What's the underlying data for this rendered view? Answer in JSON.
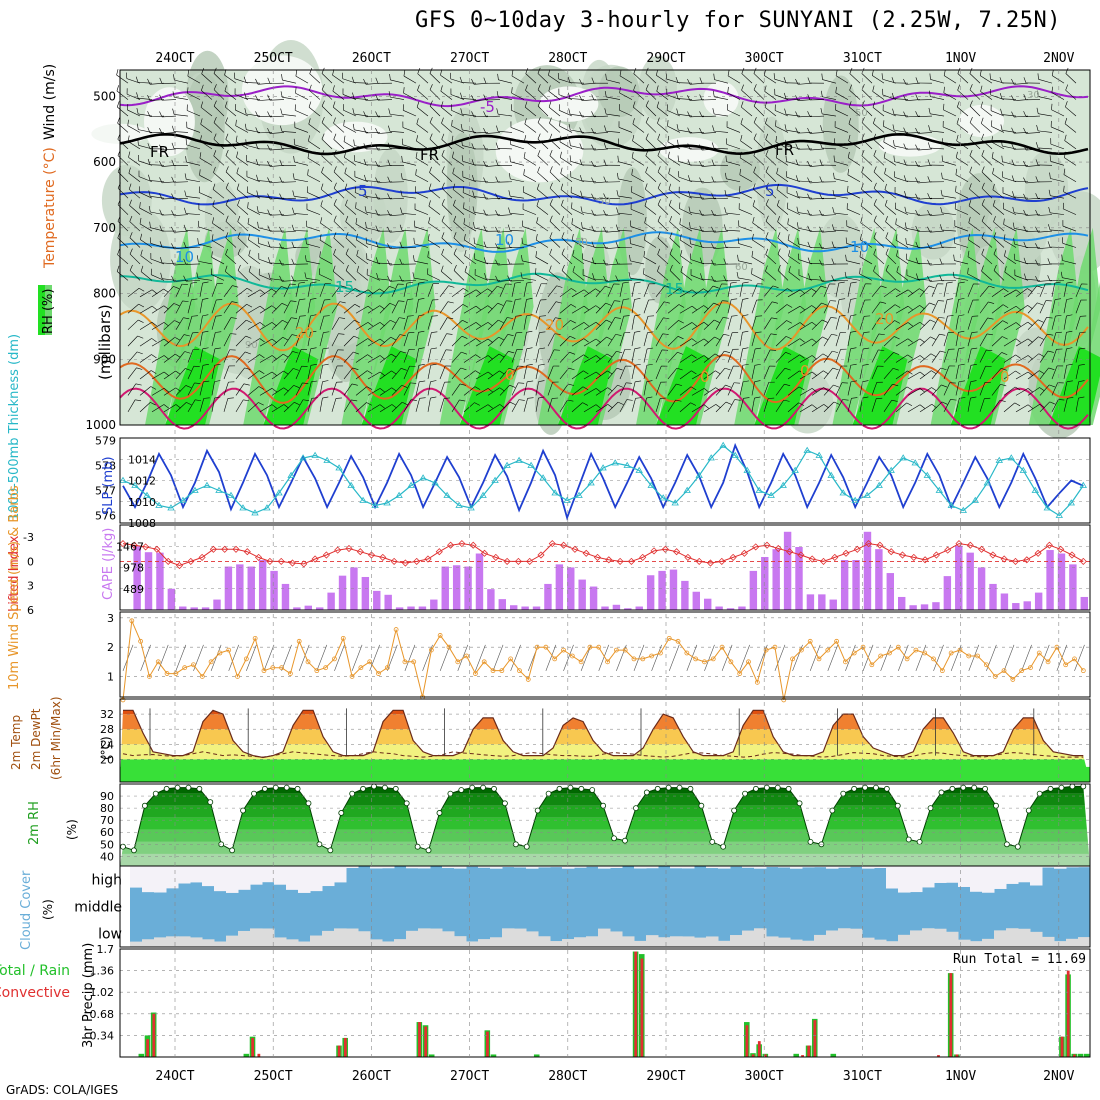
{
  "title": "GFS 0~10day 3-hourly for SUNYANI (2.25W, 7.25N)",
  "footer": "GrADS: COLA/IGES",
  "colors": {
    "rh_light": "#d6e6d6",
    "rh_mid": "#b4c8b4",
    "rh_green": "#6fd96f",
    "rh_bright": "#22e022",
    "temp_m5": "#9a1fc8",
    "temp_fr": "#000000",
    "temp_5": "#1f3fd0",
    "temp_10": "#1d8fe6",
    "temp_15": "#10b898",
    "temp_20": "#e8962a",
    "temp_25": "#e06a20",
    "temp_30": "#d01870",
    "slp": "#1f3fd0",
    "thick": "#28b8c8",
    "cape": "#c878f0",
    "li": "#e03030",
    "wind": "#e8962a",
    "cloud_blue": "#6aaed8",
    "cloud_grey": "#dcdcdc",
    "rain_total": "#22c02a",
    "rain_conv": "#e03030"
  },
  "chart_data": [
    {
      "id": "upper-air",
      "type": "contour",
      "xticks": [
        "24OCT",
        "25OCT",
        "26OCT",
        "27OCT",
        "28OCT",
        "29OCT",
        "30OCT",
        "31OCT",
        "1NOV",
        "2NOV"
      ],
      "ylabel": "(millibars)",
      "left_labels": [
        "RH (%)",
        "Temperature (°C)",
        "Wind (m/s)"
      ],
      "yticks": [
        500,
        600,
        700,
        800,
        900,
        1000
      ],
      "ylim": [
        460,
        1000
      ],
      "isotherms": [
        {
          "value": -5,
          "label": "-5",
          "level": 500
        },
        {
          "value": 0,
          "label": "FR",
          "level": 573
        },
        {
          "value": 5,
          "label": "5",
          "level": 650
        },
        {
          "value": 10,
          "label": "10",
          "level": 722
        },
        {
          "value": 15,
          "label": "15",
          "level": 785
        },
        {
          "value": 20,
          "label": "20",
          "level": 850
        },
        {
          "value": 25,
          "label": "",
          "level": 930
        },
        {
          "value": 30,
          "label": "",
          "level": 975
        }
      ],
      "contour_labels": [
        "-5",
        "FR",
        "FR",
        "FR",
        "5",
        "5",
        "10",
        "10",
        "10",
        "15",
        "15",
        "20",
        "20",
        "20",
        "0",
        "0",
        "0",
        "0"
      ],
      "rh_contour_labels": [
        "30",
        "50",
        "50",
        "50",
        "60",
        "90"
      ]
    },
    {
      "id": "slp-thickness",
      "type": "line",
      "left_labels": [
        "1000-500mb Thickness (dm)",
        "SLP (mb)"
      ],
      "thickness_ticks": [
        579,
        578,
        577,
        576
      ],
      "slp_ticks": [
        1014,
        1012,
        1010
      ],
      "slp_ticks_extra": [
        "1008"
      ],
      "slp_ylim": [
        1008,
        1016
      ],
      "thick_ylim": [
        575.7,
        579.1
      ],
      "series": [
        {
          "name": "SLP",
          "values": [
            1011.5,
            1009.5,
            1011.8,
            1014.5,
            1012.5,
            1009.5,
            1011.8,
            1014.8,
            1012.8,
            1009.3,
            1011.8,
            1014.5,
            1012.5,
            1009.5,
            1011.8,
            1014.2,
            1012.2,
            1009.5,
            1011.8,
            1014.3,
            1012.3,
            1009.5,
            1011.8,
            1014.5,
            1012.5,
            1009.5,
            1011.8,
            1014.2,
            1012.3,
            1009.5,
            1011.8,
            1014.4,
            1012.4,
            1009.2,
            1011.8,
            1014.8,
            1012.5,
            1008.5,
            1011.5,
            1014.5,
            1012.2,
            1009.5,
            1011.8,
            1014.2,
            1012.2,
            1009.5,
            1011.8,
            1014.4,
            1012.4,
            1009.5,
            1011.8,
            1015.3,
            1012.8,
            1009.5,
            1011.8,
            1014.5,
            1012.5,
            1009.5,
            1011.8,
            1014.4,
            1012.3,
            1009.5,
            1011.8,
            1014.2,
            1012.5,
            1009.5,
            1011.8,
            1014.5,
            1012.5,
            1009.5,
            1011.8,
            1014.2,
            1012.2,
            1009.5,
            1011.8,
            1014.5,
            1012.2,
            1009.5,
            1010.8,
            1012.0,
            1011.5
          ]
        },
        {
          "name": "Thickness",
          "values": [
            577.4,
            577.2,
            576.8,
            576.4,
            576.3,
            576.6,
            577.0,
            577.2,
            577.0,
            576.8,
            576.3,
            576.1,
            576.3,
            576.9,
            577.6,
            578.3,
            578.4,
            578.2,
            577.9,
            577.2,
            576.6,
            576.4,
            576.5,
            576.8,
            577.2,
            577.5,
            577.3,
            576.8,
            576.4,
            576.3,
            576.8,
            577.4,
            578.0,
            578.2,
            578.0,
            577.5,
            576.9,
            576.6,
            576.8,
            577.3,
            577.9,
            578.1,
            578.0,
            577.8,
            577.2,
            576.7,
            576.5,
            577.0,
            577.6,
            578.3,
            578.8,
            578.4,
            577.8,
            577.0,
            576.8,
            577.2,
            577.8,
            578.6,
            578.4,
            577.6,
            576.9,
            576.6,
            576.8,
            577.2,
            577.8,
            578.3,
            578.1,
            577.6,
            577.0,
            576.4,
            576.2,
            576.6,
            577.3,
            578.2,
            578.3,
            577.8,
            577.0,
            576.3,
            576.0,
            576.5,
            577.2
          ]
        }
      ]
    },
    {
      "id": "cape-li",
      "type": "bar",
      "left_labels": [
        "Lifted Index",
        "CAPE (J/kg)"
      ],
      "li_ticks": [
        "-3",
        "0",
        "3",
        "6"
      ],
      "cape_ticks": [
        1467,
        978,
        489
      ],
      "cape_ylim": [
        0,
        1956
      ],
      "li_ylim": [
        6,
        -4.5
      ],
      "cape": [
        0,
        1467,
        1330,
        1320,
        489,
        80,
        60,
        60,
        240,
        1000,
        1050,
        1000,
        1150,
        900,
        600,
        60,
        100,
        60,
        400,
        790,
        980,
        760,
        440,
        350,
        60,
        80,
        80,
        240,
        1000,
        1030,
        1000,
        1300,
        480,
        250,
        110,
        80,
        80,
        600,
        1050,
        980,
        700,
        540,
        80,
        120,
        40,
        80,
        800,
        900,
        930,
        670,
        420,
        260,
        80,
        40,
        80,
        900,
        1220,
        1400,
        1800,
        1450,
        360,
        360,
        240,
        1150,
        1150,
        1800,
        1400,
        850,
        300,
        110,
        130,
        180,
        780,
        1480,
        1320,
        980,
        600,
        380,
        160,
        200,
        400,
        1380,
        1300,
        1050,
        300
      ],
      "li": [
        -2.2,
        -2.0,
        -1.8,
        -1.5,
        0,
        0.5,
        0,
        -0.5,
        -1.5,
        -1.5,
        -1.5,
        -1.2,
        -0.5,
        0,
        0,
        0.2,
        0.3,
        -0.3,
        -0.8,
        -1.4,
        -1.6,
        -1.2,
        -0.8,
        -0.5,
        0,
        0.2,
        0,
        -0.3,
        -1.2,
        -2.0,
        -2.2,
        -2.0,
        -1.0,
        -0.5,
        0,
        0,
        0,
        -0.8,
        -2.2,
        -2.0,
        -1.5,
        -1.0,
        -0.5,
        -0.2,
        0,
        0,
        -0.5,
        -1.3,
        -1.5,
        -1.2,
        -0.5,
        0,
        0.2,
        0,
        -0.5,
        -1.0,
        -1.8,
        -2.0,
        -1.6,
        -1.2,
        -0.8,
        -0.3,
        0,
        -0.5,
        -1.0,
        -1.5,
        -2.2,
        -2.0,
        -1.2,
        -0.8,
        -0.5,
        -0.2,
        -0.8,
        -1.4,
        -2.2,
        -2.0,
        -1.5,
        -0.8,
        -0.3,
        0,
        -0.2,
        -1.0,
        -2.0,
        -1.5,
        -0.8,
        0
      ]
    },
    {
      "id": "wind10m",
      "type": "line",
      "left_labels": [
        "10m Wind Speed (m/s) & Barbs"
      ],
      "yticks": [
        1,
        2,
        3
      ],
      "ylim": [
        0.3,
        3.2
      ],
      "values": [
        0.2,
        2.9,
        2.2,
        1.0,
        1.5,
        1.1,
        1.1,
        1.3,
        1.4,
        1.0,
        1.5,
        1.8,
        1.9,
        1.0,
        1.6,
        2.3,
        1.2,
        1.3,
        1.3,
        1.1,
        2.2,
        1.5,
        1.2,
        1.3,
        1.6,
        2.3,
        1.0,
        1.3,
        1.5,
        1.1,
        1.3,
        2.6,
        1.5,
        1.5,
        0.3,
        1.9,
        2.4,
        2.0,
        1.5,
        1.7,
        1.1,
        1.5,
        1.2,
        1.2,
        1.6,
        1.2,
        0.9,
        2.0,
        2.0,
        1.6,
        1.9,
        1.7,
        1.5,
        2.0,
        2.0,
        1.5,
        1.9,
        1.9,
        1.6,
        1.6,
        1.7,
        1.8,
        2.3,
        2.2,
        1.8,
        1.6,
        1.5,
        1.6,
        2.0,
        1.5,
        1.1,
        1.5,
        0.8,
        1.9,
        2.0,
        0.2,
        1.6,
        1.9,
        2.2,
        1.6,
        1.9,
        2.2,
        1.5,
        1.8,
        2.0,
        1.4,
        1.7,
        1.8,
        2.0,
        1.6,
        1.9,
        1.8,
        1.6,
        1.2,
        1.8,
        1.9,
        1.7,
        1.7,
        1.4,
        1.0,
        1.2,
        0.9,
        1.2,
        1.3,
        1.8,
        1.5,
        2.0,
        1.4,
        1.6,
        1.2
      ]
    },
    {
      "id": "temp2m",
      "type": "area",
      "left_labels": [
        "2m Temp",
        "2m DewPt",
        "(6hr Min/Max)",
        "(°C)"
      ],
      "yticks": [
        20,
        24,
        28,
        32
      ],
      "ylim": [
        14,
        36
      ],
      "temp": [
        33,
        33,
        27,
        22,
        21.5,
        21,
        21,
        22,
        30,
        33,
        32,
        25,
        22,
        21,
        20.5,
        21,
        22,
        29,
        33,
        33,
        26,
        22,
        21,
        21,
        21,
        22,
        30,
        33,
        33,
        25,
        22,
        21,
        21,
        21,
        22,
        28,
        31,
        31,
        25,
        22,
        21,
        21,
        21,
        23,
        29,
        31,
        30,
        25,
        22,
        21,
        21,
        21,
        23,
        28,
        32,
        31,
        26,
        22,
        21,
        21,
        21,
        22,
        29,
        33,
        33,
        26,
        22,
        21,
        21,
        21,
        22,
        29,
        32,
        32,
        26,
        23,
        22,
        21,
        21,
        22,
        28,
        31,
        31,
        27,
        22,
        21,
        21,
        21,
        22,
        28,
        31,
        31,
        25,
        22,
        21.5,
        21,
        21
      ],
      "dewpt": [
        21.5,
        21,
        21.2,
        21.3,
        21,
        20.8,
        21,
        21.5,
        22,
        21.5,
        21,
        21.2,
        21,
        20.8,
        20.6,
        21,
        21.5,
        22,
        21.7,
        21.5,
        21.2,
        21,
        20.8,
        21,
        21.5,
        22,
        21.7,
        21.5,
        21,
        20.8,
        20.6,
        20.8,
        21.3,
        22,
        21.7,
        21.5,
        21.2,
        21,
        20.8,
        21,
        21.5,
        21.8,
        21.5,
        21.2,
        21,
        21,
        20.8,
        20.8,
        21.4,
        21.8,
        21.6,
        21.4,
        21,
        20.8,
        20.6,
        20.8,
        21.3,
        21.8,
        21.7,
        21.4,
        21,
        20.8,
        20.6,
        20.8,
        21.4,
        21.8,
        21.6,
        21.4,
        21,
        20.8,
        20.6,
        20.8,
        21.3,
        21.8,
        21.6,
        21.5,
        21,
        20.8,
        20.6,
        20.8,
        21.5,
        21.8,
        21.6,
        21.2,
        21,
        20.8,
        20.6,
        21,
        21.5,
        21.8,
        21.6,
        21.3,
        21,
        20.8,
        20.6,
        20.6,
        20.6
      ]
    },
    {
      "id": "rh2m",
      "type": "area",
      "left_labels": [
        "2m RH",
        "(%)"
      ],
      "yticks": [
        40,
        50,
        60,
        70,
        80,
        90
      ],
      "ylim": [
        32,
        100
      ],
      "values": [
        48,
        45,
        82,
        92,
        96,
        97,
        97,
        96,
        85,
        50,
        45,
        78,
        92,
        96,
        97,
        97,
        96,
        84,
        50,
        45,
        76,
        92,
        96,
        98,
        97,
        96,
        84,
        48,
        45,
        76,
        92,
        95,
        97,
        97,
        96,
        84,
        50,
        48,
        78,
        92,
        96,
        97,
        96,
        95,
        82,
        55,
        53,
        80,
        93,
        96,
        97,
        97,
        96,
        82,
        52,
        48,
        78,
        92,
        96,
        97,
        97,
        96,
        84,
        52,
        50,
        78,
        92,
        96,
        97,
        97,
        96,
        82,
        54,
        52,
        80,
        93,
        96,
        97,
        97,
        96,
        82,
        50,
        48,
        78,
        92,
        96,
        97,
        98,
        98
      ]
    },
    {
      "id": "cloud",
      "type": "area",
      "left_labels": [
        "Cloud Cover",
        "(%)"
      ],
      "rows": [
        "high",
        "middle",
        "low"
      ]
    },
    {
      "id": "precip",
      "type": "bar",
      "left_labels": [
        "Total / Rain",
        "Convective",
        "3hr Precip (mm)"
      ],
      "yticks": [
        "0.34",
        "0.68",
        "1.02",
        "1.36",
        "1.7"
      ],
      "ylim": [
        0,
        1.7
      ],
      "run_total_label": "Run Total = 11.69",
      "total": [
        0,
        0,
        0,
        0.05,
        0.34,
        0.7,
        0,
        0,
        0,
        0,
        0,
        0,
        0,
        0,
        0,
        0,
        0,
        0,
        0,
        0,
        0.05,
        0.32,
        0,
        0,
        0,
        0,
        0,
        0,
        0,
        0,
        0,
        0,
        0,
        0,
        0,
        0.18,
        0.3,
        0,
        0,
        0,
        0,
        0,
        0,
        0,
        0,
        0,
        0,
        0,
        0.55,
        0.5,
        0.04,
        0,
        0,
        0,
        0,
        0,
        0,
        0,
        0,
        0.42,
        0.04,
        0,
        0,
        0,
        0,
        0,
        0,
        0.04,
        0,
        0,
        0,
        0,
        0,
        0,
        0,
        0,
        0,
        0,
        0,
        0,
        0,
        0,
        0,
        1.66,
        1.62,
        0,
        0,
        0,
        0,
        0,
        0,
        0,
        0,
        0,
        0,
        0,
        0,
        0,
        0,
        0,
        0,
        0.55,
        0.06,
        0.2,
        0.05,
        0,
        0,
        0,
        0,
        0.05,
        0,
        0.18,
        0.6,
        0,
        0,
        0.05,
        0,
        0,
        0,
        0,
        0,
        0,
        0,
        0,
        0,
        0,
        0,
        0,
        0,
        0,
        0,
        0,
        0,
        0,
        1.32,
        0.04,
        0,
        0,
        0,
        0,
        0,
        0,
        0,
        0,
        0,
        0,
        0,
        0,
        0,
        0,
        0,
        0,
        0.32,
        1.3,
        0.05,
        0.05,
        0.05
      ],
      "conv": [
        0,
        0,
        0,
        0,
        0.28,
        0.68,
        0,
        0,
        0,
        0,
        0,
        0,
        0,
        0,
        0,
        0,
        0,
        0,
        0,
        0,
        0,
        0.3,
        0.05,
        0,
        0,
        0,
        0,
        0,
        0,
        0,
        0,
        0,
        0,
        0,
        0,
        0.18,
        0.3,
        0,
        0,
        0,
        0,
        0,
        0,
        0,
        0,
        0,
        0,
        0,
        0.55,
        0.48,
        0,
        0,
        0,
        0,
        0,
        0,
        0,
        0,
        0,
        0.4,
        0,
        0,
        0,
        0,
        0,
        0,
        0,
        0,
        0,
        0,
        0,
        0,
        0,
        0,
        0,
        0,
        0,
        0,
        0,
        0,
        0,
        0,
        0,
        1.66,
        1.55,
        0,
        0,
        0,
        0,
        0,
        0,
        0,
        0,
        0,
        0,
        0,
        0,
        0,
        0,
        0,
        0,
        0.5,
        0.04,
        0.25,
        0.04,
        0,
        0,
        0,
        0,
        0,
        0.03,
        0.18,
        0.58,
        0,
        0,
        0,
        0,
        0,
        0,
        0,
        0,
        0,
        0,
        0,
        0,
        0,
        0,
        0,
        0,
        0,
        0,
        0,
        0.03,
        0,
        1.32,
        0.04,
        0,
        0,
        0,
        0,
        0,
        0,
        0,
        0,
        0,
        0,
        0,
        0,
        0,
        0,
        0,
        0,
        0.32,
        1.36,
        0.04,
        0,
        0
      ]
    }
  ]
}
